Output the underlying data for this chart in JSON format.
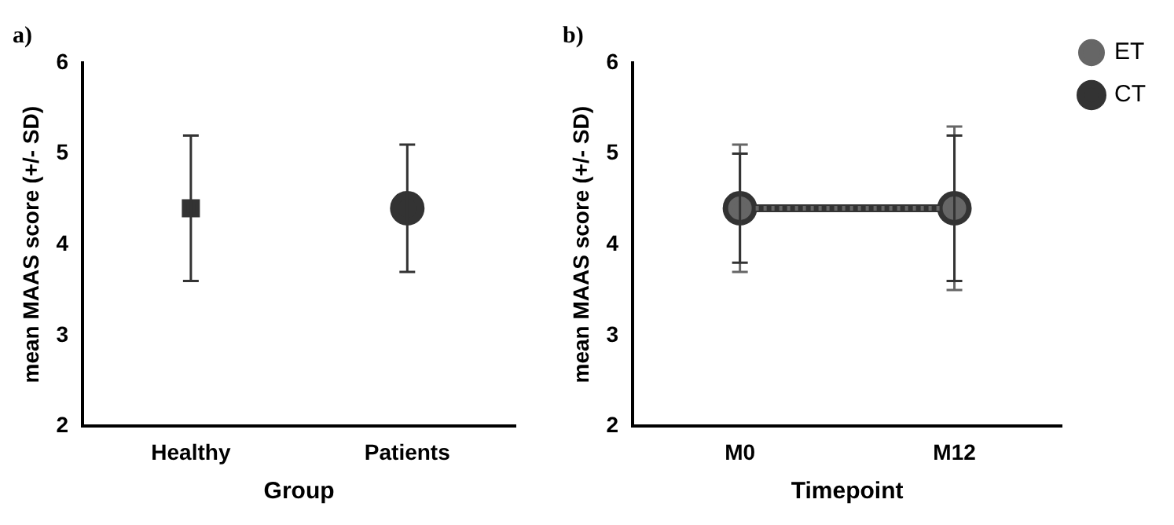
{
  "chart_data": [
    {
      "type": "scatter",
      "title": "a)",
      "xlabel": "Group",
      "ylabel": "mean MAAS score (+/- SD)",
      "categories": [
        "Healthy",
        "Patients"
      ],
      "ylim": [
        2,
        6
      ],
      "yticks": [
        2,
        3,
        4,
        5,
        6
      ],
      "grid": false,
      "legend": false,
      "series": [
        {
          "color": "#333333",
          "marker": "square",
          "values": [
            4.4,
            null
          ],
          "errors": [
            [
              3.6,
              5.2
            ],
            null
          ]
        },
        {
          "color": "#333333",
          "marker": "circle",
          "values": [
            null,
            4.4
          ],
          "errors": [
            null,
            [
              3.7,
              5.1
            ]
          ]
        }
      ]
    },
    {
      "type": "line",
      "title": "b)",
      "xlabel": "Timepoint",
      "ylabel": "mean MAAS score (+/- SD)",
      "categories": [
        "M0",
        "M12"
      ],
      "ylim": [
        2,
        6
      ],
      "yticks": [
        2,
        3,
        4,
        5,
        6
      ],
      "grid": false,
      "legend": "top right",
      "marker": "circle",
      "series": [
        {
          "name": "ET",
          "color": "#666666",
          "line_style": "dotted",
          "values": [
            4.4,
            4.4
          ],
          "errors": [
            [
              3.7,
              5.1
            ],
            [
              3.5,
              5.3
            ]
          ]
        },
        {
          "name": "CT",
          "color": "#333333",
          "line_style": "solid",
          "values": [
            4.4,
            4.4
          ],
          "errors": [
            [
              3.8,
              5.0
            ],
            [
              3.6,
              5.2
            ]
          ]
        }
      ]
    }
  ]
}
